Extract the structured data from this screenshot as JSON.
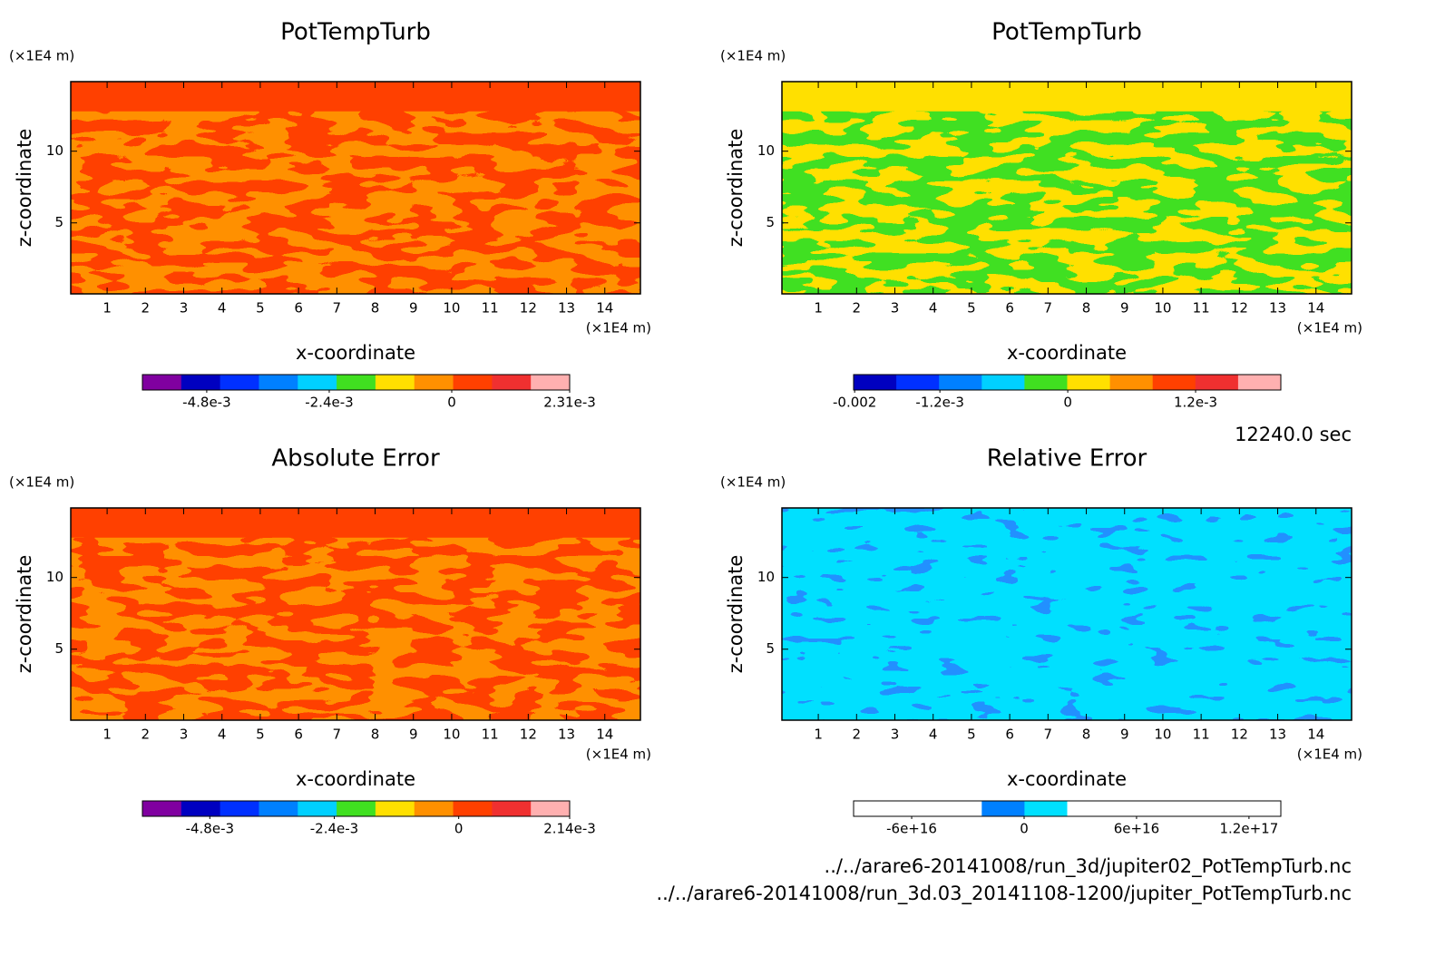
{
  "chart_data": [
    {
      "type": "contour",
      "title": "PotTempTurb",
      "xlabel": "x-coordinate",
      "ylabel": "z-coordinate",
      "xunit": "(×1E4 m)",
      "yunit": "(×1E4 m)",
      "xlim": [
        0.05,
        14.93
      ],
      "ylim": [
        0.05,
        14.85
      ],
      "xticks": [
        1,
        2,
        3,
        4,
        5,
        6,
        7,
        8,
        9,
        10,
        11,
        12,
        13,
        14
      ],
      "yticks": [
        5,
        10
      ],
      "field_colors": [
        "#ff4000",
        "#ff9000"
      ],
      "colorbar": {
        "clim": [
          -0.00606,
          0.00231
        ],
        "colors": [
          "#8000a0",
          "#0000c0",
          "#0030ff",
          "#0080ff",
          "#00d0ff",
          "#40e020",
          "#ffe000",
          "#ff9000",
          "#ff4000",
          "#f03030",
          "#ffb0b0"
        ],
        "ticks": [
          {
            "value": -0.0048,
            "label": "-4.8e-3"
          },
          {
            "value": -0.0024,
            "label": "-2.4e-3"
          },
          0,
          {
            "value": 0.00231,
            "label": "2.31e-3"
          }
        ]
      }
    },
    {
      "type": "contour",
      "title": "PotTempTurb",
      "xlabel": "x-coordinate",
      "ylabel": "z-coordinate",
      "xunit": "(×1E4 m)",
      "yunit": "(×1E4 m)",
      "xlim": [
        0.05,
        14.93
      ],
      "ylim": [
        0.05,
        14.85
      ],
      "xticks": [
        1,
        2,
        3,
        4,
        5,
        6,
        7,
        8,
        9,
        10,
        11,
        12,
        13,
        14
      ],
      "yticks": [
        5,
        10
      ],
      "field_colors": [
        "#ffe000",
        "#40e020"
      ],
      "colorbar": {
        "clim": [
          -0.00201,
          0.002
        ],
        "colors": [
          "#0000c0",
          "#0030ff",
          "#0080ff",
          "#00d0ff",
          "#40e020",
          "#ffe000",
          "#ff9000",
          "#ff4000",
          "#f03030",
          "#ffb0b0"
        ],
        "ticks": [
          -0.002,
          {
            "value": -0.0012,
            "label": "-1.2e-3"
          },
          0,
          {
            "value": 0.0012,
            "label": "1.2e-3"
          }
        ]
      }
    },
    {
      "type": "contour",
      "title": "Absolute Error",
      "xlabel": "x-coordinate",
      "ylabel": "z-coordinate",
      "xunit": "(×1E4 m)",
      "yunit": "(×1E4 m)",
      "xlim": [
        0.05,
        14.93
      ],
      "ylim": [
        0.05,
        14.85
      ],
      "xticks": [
        1,
        2,
        3,
        4,
        5,
        6,
        7,
        8,
        9,
        10,
        11,
        12,
        13,
        14
      ],
      "yticks": [
        5,
        10
      ],
      "field_colors": [
        "#ff4000",
        "#ff9000"
      ],
      "colorbar": {
        "clim": [
          -0.0061,
          0.00214
        ],
        "colors": [
          "#8000a0",
          "#0000c0",
          "#0030ff",
          "#0080ff",
          "#00d0ff",
          "#40e020",
          "#ffe000",
          "#ff9000",
          "#ff4000",
          "#f03030",
          "#ffb0b0"
        ],
        "ticks": [
          {
            "value": -0.0048,
            "label": "-4.8e-3"
          },
          {
            "value": -0.0024,
            "label": "-2.4e-3"
          },
          0,
          {
            "value": 0.00214,
            "label": "2.14e-3"
          }
        ]
      }
    },
    {
      "type": "contour",
      "title": "Relative Error",
      "xlabel": "x-coordinate",
      "ylabel": "z-coordinate",
      "xunit": "(×1E4 m)",
      "yunit": "(×1E4 m)",
      "xlim": [
        0.05,
        14.93
      ],
      "ylim": [
        0.05,
        14.85
      ],
      "xticks": [
        1,
        2,
        3,
        4,
        5,
        6,
        7,
        8,
        9,
        10,
        11,
        12,
        13,
        14
      ],
      "yticks": [
        5,
        10
      ],
      "field_colors": [
        "#00e0ff",
        "#2090ff"
      ],
      "colorbar": {
        "clim": [
          -9.1e+16,
          1.37e+17
        ],
        "colors": [
          "#ffffff",
          "#ffffff",
          "#ffffff",
          "#0080ff",
          "#00e0ff",
          "#ffffff",
          "#ffffff",
          "#ffffff",
          "#ffffff",
          "#ffffff"
        ],
        "ticks": [
          {
            "value": -6e+16,
            "label": "-6e+16"
          },
          0,
          {
            "value": 6e+16,
            "label": "6e+16"
          },
          {
            "value": 1.2e+17,
            "label": "1.2e+17"
          }
        ]
      }
    }
  ],
  "time_label": "12240.0 sec",
  "files": [
    "../../arare6-20141008/run_3d/jupiter02_PotTempTurb.nc",
    "../../arare6-20141008/run_3d.03_20141108-1200/jupiter_PotTempTurb.nc"
  ]
}
